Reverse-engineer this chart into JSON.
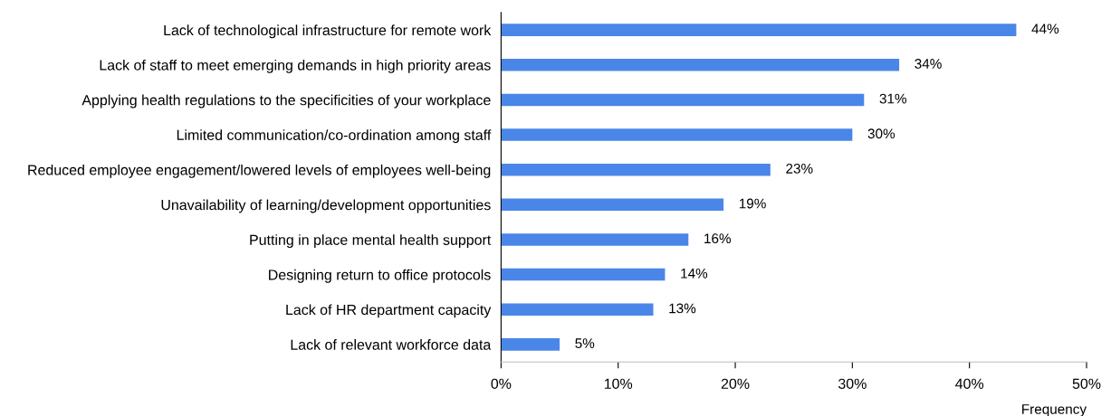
{
  "chart_data": {
    "type": "bar",
    "orientation": "horizontal",
    "xlabel": "Frequency",
    "categories": [
      "Lack of technological infrastructure for remote work",
      "Lack of staff to meet emerging demands in high priority areas",
      "Applying health regulations to the specificities of your workplace",
      "Limited communication/co-ordination among staff",
      "Reduced employee engagement/lowered levels of employees well-being",
      "Unavailability of learning/development opportunities",
      "Putting in place mental health support",
      "Designing return to office protocols",
      "Lack of HR department capacity",
      "Lack of relevant workforce data"
    ],
    "values": [
      44,
      34,
      31,
      30,
      23,
      19,
      16,
      14,
      13,
      5
    ],
    "value_labels": [
      "44%",
      "34%",
      "31%",
      "30%",
      "23%",
      "19%",
      "16%",
      "14%",
      "13%",
      "5%"
    ],
    "color": "#4a86e8",
    "xlim": [
      0,
      50
    ],
    "xticks": [
      {
        "value": 0,
        "label": "0%"
      },
      {
        "value": 10,
        "label": "10%"
      },
      {
        "value": 20,
        "label": "20%"
      },
      {
        "value": 30,
        "label": "30%"
      },
      {
        "value": 40,
        "label": "40%"
      },
      {
        "value": 50,
        "label": "50%"
      }
    ],
    "grid": false,
    "legend": false
  }
}
